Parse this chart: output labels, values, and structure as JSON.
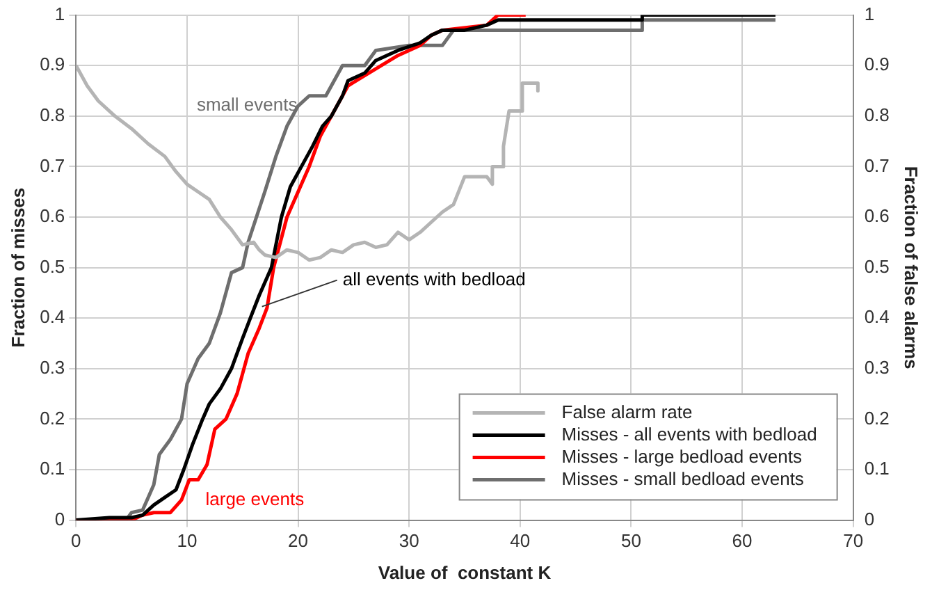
{
  "chart_data": {
    "type": "line",
    "xlabel": "Value of  constant K",
    "ylabel": "Fraction of misses",
    "y2label": "Fraction of false alarms",
    "xlim": [
      0,
      70
    ],
    "xticks": [
      0,
      10,
      20,
      30,
      40,
      50,
      60,
      70
    ],
    "ylim": [
      0,
      1
    ],
    "yticks": [
      0,
      0.1,
      0.2,
      0.3,
      0.4,
      0.5,
      0.6,
      0.7,
      0.8,
      0.9,
      1
    ],
    "y2lim": [
      0,
      1
    ],
    "y2ticks": [
      0,
      0.1,
      0.2,
      0.3,
      0.4,
      0.5,
      0.6,
      0.7,
      0.8,
      0.9,
      1
    ],
    "grid": true,
    "legend": "bottom right",
    "marker": "none",
    "line_style": "solid",
    "annotations": [
      "small events",
      {
        "text": "all events with bedload",
        "x": 16.5,
        "y": 0.42
      },
      "large events"
    ],
    "series": [
      {
        "name": "False alarm rate",
        "color": "#b4b4b4",
        "axis": "y2",
        "x": [
          0,
          1,
          2,
          3.5,
          5,
          6.5,
          8,
          9,
          10,
          11,
          12,
          13,
          14,
          15,
          16,
          16.5,
          17,
          18,
          19,
          20,
          21,
          22,
          23,
          24,
          25,
          26,
          27,
          28,
          29,
          30,
          31,
          32,
          33,
          34,
          35,
          36,
          37,
          37.5,
          37.5,
          38.5,
          38.5,
          39,
          40.2,
          40.2,
          41.6,
          41.6
        ],
        "values": [
          0.9,
          0.86,
          0.83,
          0.8,
          0.775,
          0.745,
          0.72,
          0.69,
          0.665,
          0.65,
          0.635,
          0.6,
          0.575,
          0.545,
          0.55,
          0.535,
          0.525,
          0.52,
          0.535,
          0.53,
          0.515,
          0.52,
          0.535,
          0.53,
          0.545,
          0.55,
          0.54,
          0.545,
          0.57,
          0.555,
          0.57,
          0.59,
          0.61,
          0.625,
          0.68,
          0.68,
          0.68,
          0.665,
          0.7,
          0.7,
          0.74,
          0.81,
          0.81,
          0.865,
          0.865,
          0.85
        ]
      },
      {
        "name": "Misses - all events with bedload",
        "color": "#000000",
        "x": [
          0,
          3,
          5,
          6,
          7,
          8,
          9,
          9.7,
          10.5,
          11.4,
          12,
          13,
          14,
          15,
          15.7,
          16.5,
          17.6,
          18.5,
          19.3,
          20.3,
          21.3,
          22.2,
          23,
          24,
          24.5,
          26,
          27,
          29,
          31,
          32,
          33,
          35,
          37,
          38,
          51,
          51,
          63
        ],
        "values": [
          0,
          0.005,
          0.005,
          0.01,
          0.03,
          0.045,
          0.06,
          0.1,
          0.15,
          0.2,
          0.23,
          0.26,
          0.3,
          0.36,
          0.4,
          0.445,
          0.5,
          0.6,
          0.66,
          0.7,
          0.74,
          0.78,
          0.8,
          0.84,
          0.87,
          0.885,
          0.91,
          0.93,
          0.945,
          0.96,
          0.97,
          0.97,
          0.98,
          0.99,
          0.99,
          1,
          1
        ]
      },
      {
        "name": "Misses - large bedload events",
        "color": "#ff0000",
        "x": [
          0,
          5,
          6,
          7,
          8.5,
          9.5,
          10.2,
          11,
          11.8,
          12.5,
          13.5,
          14.5,
          15.5,
          16.5,
          17.2,
          17.8,
          19,
          20,
          21,
          22,
          23.5,
          24.5,
          26,
          29,
          31,
          32,
          33,
          37,
          38,
          40.5
        ],
        "values": [
          0,
          0,
          0.01,
          0.015,
          0.015,
          0.04,
          0.08,
          0.08,
          0.11,
          0.18,
          0.2,
          0.25,
          0.33,
          0.38,
          0.42,
          0.5,
          0.6,
          0.65,
          0.7,
          0.76,
          0.82,
          0.86,
          0.88,
          0.92,
          0.94,
          0.96,
          0.97,
          0.98,
          1,
          1
        ]
      },
      {
        "name": "Misses - small bedload events",
        "color": "#6e6e6e",
        "x": [
          0,
          4.5,
          5,
          6,
          6.5,
          7,
          7.5,
          8.5,
          9.5,
          10,
          11,
          12,
          13,
          14,
          15,
          15.5,
          17,
          18,
          19,
          20,
          21,
          22.5,
          23,
          24,
          26,
          27,
          30,
          33,
          34,
          51,
          51,
          63
        ],
        "values": [
          0,
          0,
          0.015,
          0.02,
          0.045,
          0.07,
          0.13,
          0.16,
          0.2,
          0.27,
          0.32,
          0.35,
          0.41,
          0.49,
          0.5,
          0.55,
          0.65,
          0.72,
          0.78,
          0.82,
          0.84,
          0.84,
          0.86,
          0.9,
          0.9,
          0.93,
          0.94,
          0.94,
          0.97,
          0.97,
          0.99,
          0.99
        ]
      }
    ]
  }
}
